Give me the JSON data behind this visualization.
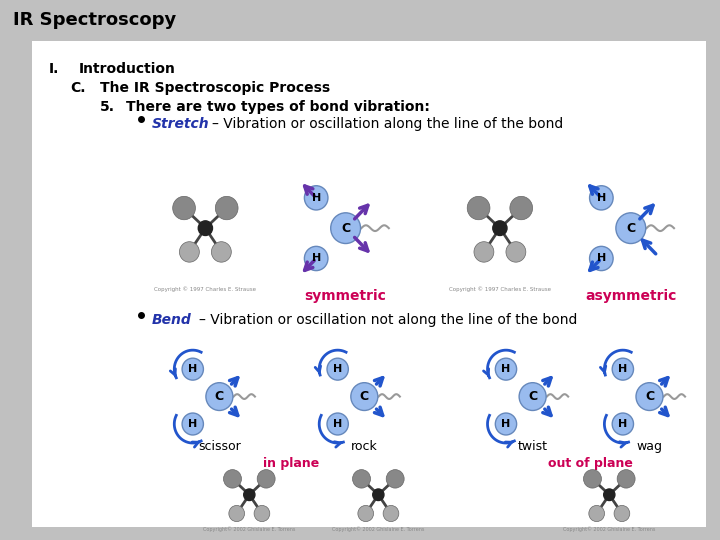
{
  "title": "IR Spectroscopy",
  "bg_outer": "#c0c0c0",
  "bg_inner": "#ffffff",
  "title_color": "#000000",
  "title_fontsize": 13,
  "header1": "I.",
  "header1_text": "Introduction",
  "header2": "C.",
  "header2_text": "The IR Spectroscopic Process",
  "header3": "5.",
  "header3_text": "There are two types of bond vibration:",
  "bullet1_bold": "Stretch",
  "bullet1_rest": " – Vibration or oscillation along the line of the bond",
  "bullet2_bold": "Bend",
  "bullet2_rest": " – Vibration or oscillation not along the line of the bond",
  "label_symmetric": "symmetric",
  "label_asymmetric": "asymmetric",
  "label_symmetric_color": "#cc0055",
  "label_asymmetric_color": "#cc0055",
  "label_scissor": "scissor",
  "label_rock": "rock",
  "label_twist": "twist",
  "label_wag": "wag",
  "label_inplane": "in plane",
  "label_outofplane": "out of plane",
  "label_inplane_color": "#cc0055",
  "label_outofplane_color": "#cc0055",
  "label_mode_color": "#000000",
  "stretch_bullet_color": "#2233aa",
  "bend_bullet_color": "#2233aa",
  "sym_arrow_color": "#6633aa",
  "asym_arrow_color": "#2255cc",
  "bend_arrow_color": "#2255cc",
  "copyright_color": "#888888"
}
